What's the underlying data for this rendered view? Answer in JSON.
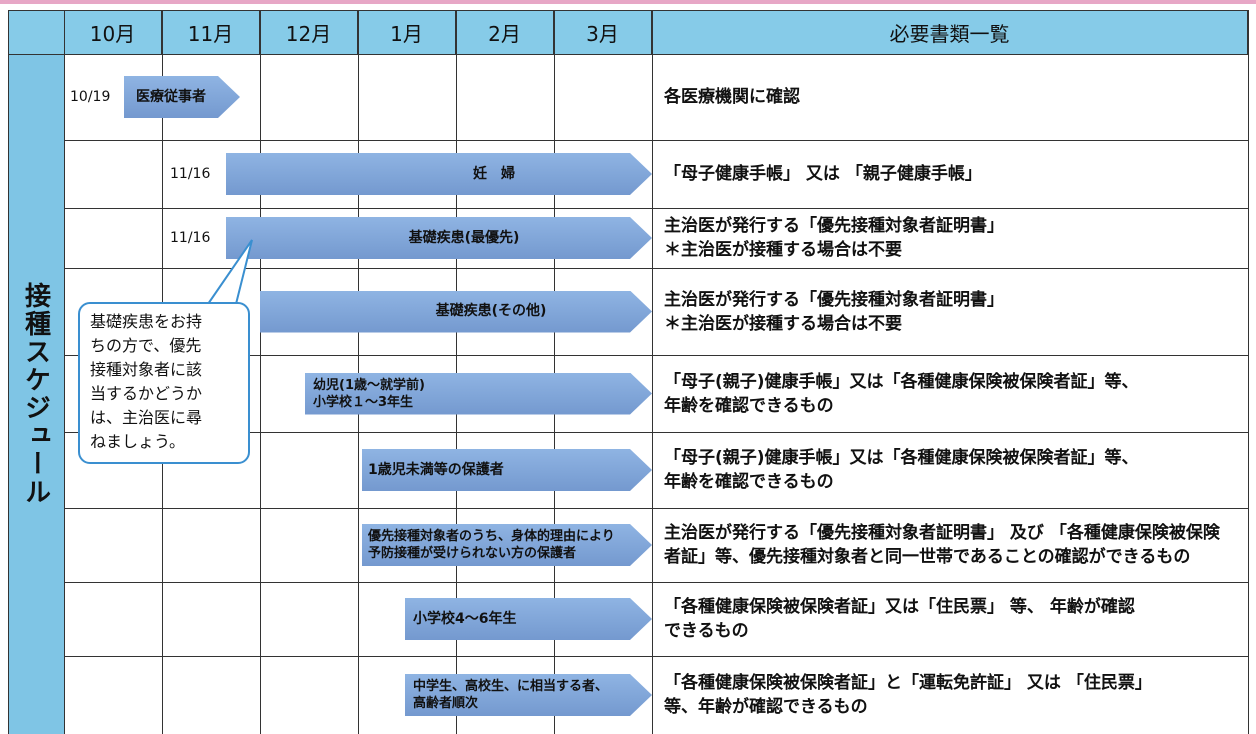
{
  "header": {
    "months": [
      "10月",
      "11月",
      "12月",
      "1月",
      "2月",
      "3月"
    ],
    "docs_title": "必要書類一覧"
  },
  "side_label": "接種スケジュール",
  "rows": [
    {
      "date": "10/19",
      "label": [
        "医療従事者"
      ],
      "docs": [
        "各医療機関に確認"
      ]
    },
    {
      "date": "11/16",
      "label": [
        "妊　婦"
      ],
      "docs": [
        "「母子健康手帳」 又は 「親子健康手帳」"
      ]
    },
    {
      "date": "11/16",
      "label": [
        "基礎疾患(最優先)"
      ],
      "docs": [
        "主治医が発行する「優先接種対象者証明書」",
        "＊主治医が接種する場合は不要"
      ]
    },
    {
      "label": [
        "基礎疾患(その他)"
      ],
      "docs": [
        "主治医が発行する「優先接種対象者証明書」",
        "＊主治医が接種する場合は不要"
      ]
    },
    {
      "label": [
        "幼児(1歳～就学前)",
        "小学校１～3年生"
      ],
      "docs": [
        "「母子(親子)健康手帳」又は「各種健康保険被保険者証」等、",
        "年齢を確認できるもの"
      ]
    },
    {
      "label": [
        "1歳児未満等の保護者"
      ],
      "docs": [
        "「母子(親子)健康手帳」又は「各種健康保険被保険者証」等、",
        "年齢を確認できるもの"
      ]
    },
    {
      "label": [
        "優先接種対象者のうち、身体的理由により",
        "予防接種が受けられない方の保護者"
      ],
      "docs": [
        "主治医が発行する「優先接種対象者証明書」 及び 「各種健康保険被保険",
        "者証」等、優先接種対象者と同一世帯であることの確認ができるもの"
      ]
    },
    {
      "label": [
        "小学校4～6年生"
      ],
      "docs": [
        "「各種健康保険被保険者証」又は「住民票」 等、 年齢が確認",
        "できるもの"
      ]
    },
    {
      "label": [
        "中学生、高校生、に相当する者、",
        "高齢者順次"
      ],
      "docs": [
        "「各種健康保険被保険者証」と「運転免許証」 又は 「住民票」",
        "等、年齢が確認できるもの"
      ]
    }
  ],
  "callout": [
    "基礎疾患をお持",
    "ちの方で、優先",
    "接種対象者に該",
    "当するかどうか",
    "は、主治医に尋",
    "ねましょう。"
  ]
}
